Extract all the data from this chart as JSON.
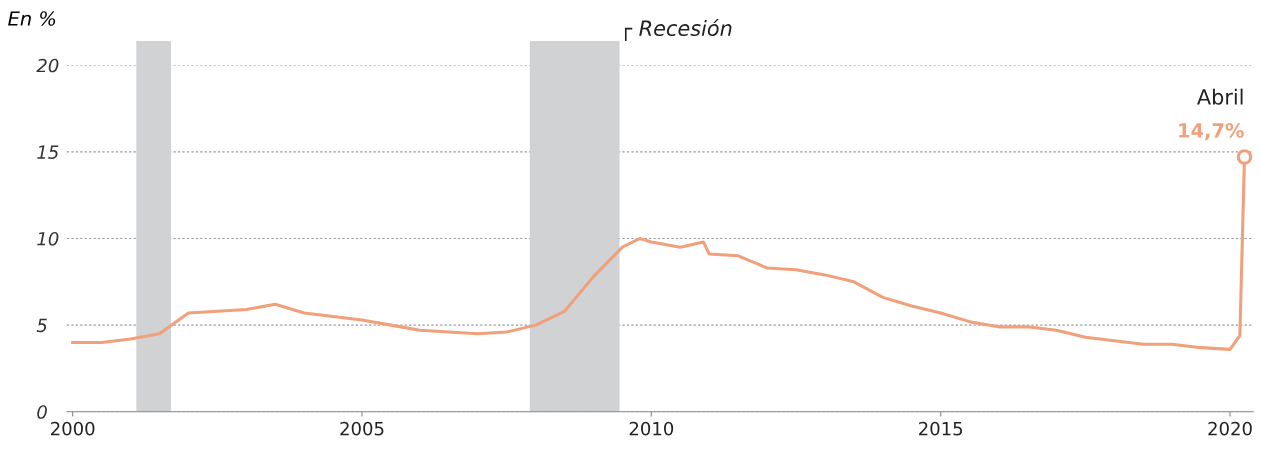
{
  "chart_data": {
    "type": "line",
    "ylabel": "En %",
    "x": [
      2000,
      2000.5,
      2001,
      2001.5,
      2002,
      2002.5,
      2003,
      2003.5,
      2004,
      2004.5,
      2005,
      2005.5,
      2006,
      2006.5,
      2007,
      2007.5,
      2008,
      2008.5,
      2009,
      2009.5,
      2009.8,
      2010,
      2010.5,
      2010.9,
      2011,
      2011.5,
      2012,
      2012.5,
      2013,
      2013.5,
      2014,
      2014.5,
      2015,
      2015.5,
      2016,
      2016.5,
      2017,
      2017.5,
      2018,
      2018.5,
      2019,
      2019.5,
      2020,
      2020.17,
      2020.25
    ],
    "series": [
      {
        "color": "#f0a07a",
        "values": [
          4.0,
          4.0,
          4.2,
          4.5,
          5.7,
          5.8,
          5.9,
          6.2,
          5.7,
          5.5,
          5.3,
          5.0,
          4.7,
          4.6,
          4.5,
          4.6,
          5.0,
          5.8,
          7.8,
          9.5,
          10.0,
          9.8,
          9.5,
          9.8,
          9.1,
          9.0,
          8.3,
          8.2,
          7.9,
          7.5,
          6.6,
          6.1,
          5.7,
          5.2,
          4.9,
          4.9,
          4.7,
          4.3,
          4.1,
          3.9,
          3.9,
          3.7,
          3.6,
          4.4,
          14.7
        ]
      }
    ],
    "xlim": [
      1999.9,
      2020.4
    ],
    "xticks": [
      2000,
      2005,
      2010,
      2015,
      2020
    ],
    "ylim": [
      0,
      20
    ],
    "yticks": [
      0,
      5,
      10,
      15,
      20
    ],
    "grid": "y",
    "line_style": "solid",
    "bands": [
      {
        "axis": "x",
        "from": 2001.1,
        "to": 2001.7,
        "color": "#d0d2d4"
      },
      {
        "axis": "x",
        "from": 2007.9,
        "to": 2009.45,
        "color": "#d0d2d4",
        "label": "┌ Recesión"
      }
    ],
    "annotations": [
      {
        "text": "Abril",
        "x": 2020.25,
        "y": 14.7
      },
      {
        "text": "14,7%",
        "x": 2020.25,
        "y": 14.7
      }
    ]
  }
}
